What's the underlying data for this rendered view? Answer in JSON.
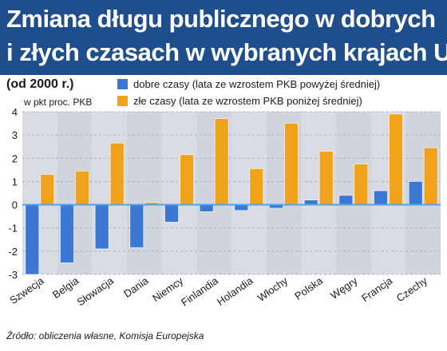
{
  "header": {
    "title_line1": "Zmiana długu publicznego w dobrych",
    "title_line2": "i złych czasach w wybranych krajach UE",
    "subtitle": "(od 2000 r.)",
    "unit": "w pkt proc. PKB"
  },
  "footer": {
    "source": "Źródło: obliczenia własne, Komisja Europejska"
  },
  "colors": {
    "header_bg": "#1f4e8c",
    "good_times": "#3a78d4",
    "bad_times": "#f0a21a",
    "zero_line": "#5aa0e6",
    "plot_bg": "#d9dde3"
  },
  "chart_data": {
    "type": "bar",
    "categories": [
      "Szwecja",
      "Belgia",
      "Słowacja",
      "Dania",
      "Niemcy",
      "Finlandia",
      "Holandia",
      "Włochy",
      "Polska",
      "Węgry",
      "Francja",
      "Czechy"
    ],
    "series": [
      {
        "name": "dobre czasy (lata ze wzrostem PKB powyżej średniej)",
        "color": "#3a78d4",
        "values": [
          -3.0,
          -2.5,
          -1.9,
          -1.85,
          -0.75,
          -0.3,
          -0.25,
          -0.15,
          0.2,
          0.4,
          0.6,
          1.0
        ]
      },
      {
        "name": "złe czasy (lata ze wzrostem PKB poniżej średniej)",
        "color": "#f0a21a",
        "values": [
          1.3,
          1.45,
          2.65,
          0.1,
          2.15,
          3.7,
          1.55,
          3.5,
          2.3,
          1.75,
          3.9,
          2.45
        ]
      }
    ],
    "ylabel": "w pkt proc. PKB",
    "ylim": [
      -3,
      4
    ],
    "yticks": [
      "-3",
      "-2",
      "-1",
      "0",
      "1",
      "2",
      "3",
      "4"
    ],
    "grid": true,
    "legend_position": "top"
  }
}
